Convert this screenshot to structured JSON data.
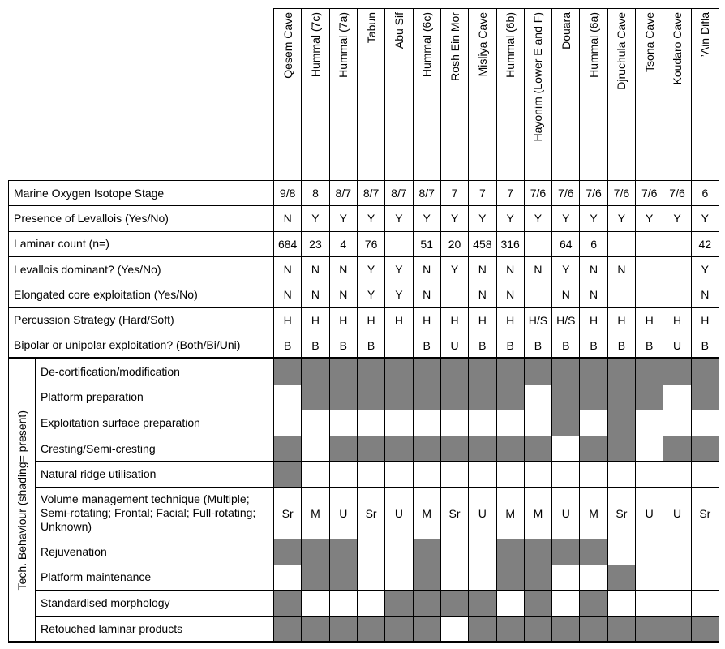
{
  "columns": [
    "Qesem Cave",
    "Hummal (7c)",
    "Hummal (7a)",
    "Tabun",
    "Abu Sif",
    "Hummal (6c)",
    "Rosh Ein Mor",
    "Misliya Cave",
    "Hummal (6b)",
    "Hayonim (Lower E and F)",
    "Douara",
    "Hummal (6a)",
    "Djruchula Cave",
    "Tsona Cave",
    "Koudaro Cave",
    "’Ain Difla"
  ],
  "rows": [
    {
      "label": "Marine Oxygen Isotope Stage",
      "values": [
        "9/8",
        "8",
        "8/7",
        "8/7",
        "8/7",
        "8/7",
        "7",
        "7",
        "7",
        "7/6",
        "7/6",
        "7/6",
        "7/6",
        "7/6",
        "7/6",
        "6"
      ]
    },
    {
      "label": "Presence of Levallois (Yes/No)",
      "values": [
        "N",
        "Y",
        "Y",
        "Y",
        "Y",
        "Y",
        "Y",
        "Y",
        "Y",
        "Y",
        "Y",
        "Y",
        "Y",
        "Y",
        "Y",
        "Y"
      ]
    },
    {
      "label": "Laminar count (n=)",
      "values": [
        684,
        23,
        4,
        76,
        null,
        51,
        20,
        458,
        316,
        null,
        64,
        6,
        null,
        null,
        null,
        42
      ]
    },
    {
      "label": "Levallois dominant? (Yes/No)",
      "values": [
        "N",
        "N",
        "N",
        "Y",
        "Y",
        "N",
        "Y",
        "N",
        "N",
        "N",
        "Y",
        "N",
        "N",
        null,
        null,
        "Y"
      ]
    },
    {
      "label": "Elongated core exploitation (Yes/No)",
      "values": [
        "N",
        "N",
        "N",
        "Y",
        "Y",
        "N",
        null,
        "N",
        "N",
        null,
        "N",
        "N",
        null,
        null,
        null,
        "N"
      ]
    },
    {
      "label": "Percussion Strategy (Hard/Soft)",
      "values": [
        "H",
        "H",
        "H",
        "H",
        "H",
        "H",
        "H",
        "H",
        "H",
        "H/S",
        "H/S",
        "H",
        "H",
        "H",
        "H",
        "H"
      ]
    },
    {
      "label": "Bipolar or unipolar exploitation? (Both/Bi/Uni)",
      "values": [
        "B",
        "B",
        "B",
        "B",
        null,
        "B",
        "U",
        "B",
        "B",
        "B",
        "B",
        "B",
        "B",
        "B",
        "U",
        "B"
      ]
    }
  ],
  "side_label": "Tech. Behaviour    (shading= present)",
  "behaviour_rows": [
    {
      "label": "De-cortification/modification",
      "present": [
        true,
        true,
        true,
        true,
        true,
        true,
        true,
        true,
        true,
        true,
        true,
        true,
        true,
        true,
        true,
        true
      ]
    },
    {
      "label": "Platform preparation",
      "present": [
        false,
        true,
        true,
        true,
        true,
        true,
        true,
        true,
        true,
        false,
        true,
        true,
        true,
        true,
        false,
        true
      ]
    },
    {
      "label": "Exploitation surface preparation",
      "present": [
        false,
        false,
        false,
        false,
        false,
        false,
        false,
        false,
        false,
        false,
        true,
        false,
        true,
        false,
        false,
        false
      ]
    },
    {
      "label": "Cresting/Semi-cresting",
      "present": [
        true,
        false,
        true,
        true,
        true,
        true,
        true,
        true,
        true,
        true,
        false,
        true,
        true,
        false,
        true,
        true
      ]
    },
    {
      "label": "Natural ridge utilisation",
      "present": [
        true,
        false,
        false,
        false,
        false,
        false,
        false,
        false,
        false,
        false,
        false,
        false,
        false,
        false,
        false,
        false
      ]
    },
    {
      "label": "Volume management technique (Multiple; Semi-rotating; Frontal; Facial; Full-rotating; Unknown)",
      "values": [
        "Sr",
        "M",
        "U",
        "Sr",
        "U",
        "M",
        "Sr",
        "U",
        "M",
        "M",
        "U",
        "M",
        "Sr",
        "U",
        "U",
        "Sr"
      ]
    },
    {
      "label": "Rejuvenation",
      "present": [
        true,
        true,
        true,
        false,
        false,
        true,
        false,
        false,
        true,
        true,
        true,
        true,
        false,
        false,
        false,
        false
      ]
    },
    {
      "label": "Platform maintenance",
      "present": [
        false,
        true,
        true,
        false,
        false,
        true,
        false,
        false,
        true,
        true,
        false,
        false,
        true,
        false,
        false,
        false
      ]
    },
    {
      "label": "Standardised morphology",
      "present": [
        true,
        false,
        false,
        false,
        true,
        true,
        true,
        true,
        false,
        true,
        false,
        true,
        false,
        false,
        false,
        false
      ]
    },
    {
      "label": "Retouched laminar products",
      "present": [
        true,
        true,
        true,
        true,
        true,
        true,
        false,
        true,
        true,
        true,
        true,
        true,
        true,
        true,
        true,
        true
      ]
    }
  ]
}
